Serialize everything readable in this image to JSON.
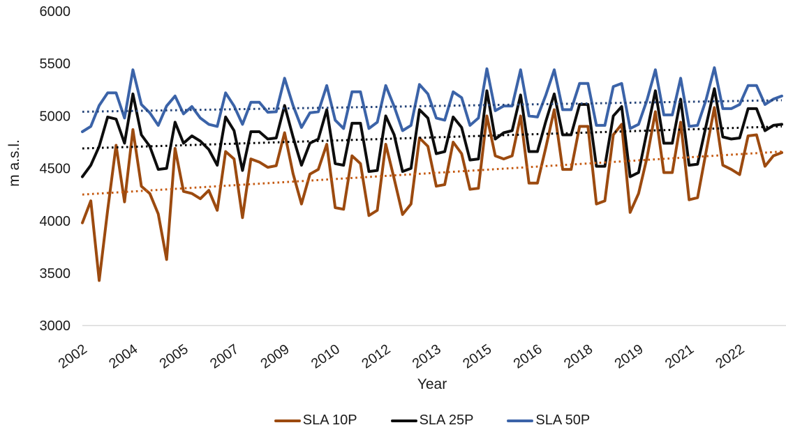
{
  "chart_data": {
    "type": "line",
    "title": "",
    "xlabel": "Year",
    "ylabel": "m a.s.l.",
    "ylim": [
      3000,
      6000
    ],
    "ytick_interval": 500,
    "yticks": [
      6000,
      5500,
      5000,
      4500,
      4000,
      3500,
      3000
    ],
    "xtick_labels": [
      "2002",
      "2004",
      "2005",
      "2007",
      "2009",
      "2010",
      "2012",
      "2013",
      "2015",
      "2016",
      "2018",
      "2019",
      "2021",
      "2022"
    ],
    "points_per_xtick": 6,
    "grid": "off",
    "legend_position": "bottom",
    "axis_line_color": "#d9d9d9",
    "series": [
      {
        "name": "SLA 10P",
        "color": "#9c4a0f",
        "values": [
          3980,
          4190,
          3430,
          4100,
          4720,
          4180,
          4870,
          4330,
          4260,
          4065,
          3630,
          4690,
          4280,
          4260,
          4210,
          4290,
          4100,
          4660,
          4590,
          4030,
          4590,
          4560,
          4510,
          4525,
          4840,
          4450,
          4160,
          4445,
          4490,
          4730,
          4125,
          4110,
          4620,
          4545,
          4050,
          4100,
          4730,
          4400,
          4060,
          4160,
          4790,
          4710,
          4330,
          4345,
          4750,
          4640,
          4300,
          4310,
          5000,
          4620,
          4590,
          4620,
          5000,
          4360,
          4360,
          4700,
          5060,
          4490,
          4490,
          4900,
          4900,
          4160,
          4190,
          4820,
          4920,
          4080,
          4260,
          4600,
          5040,
          4460,
          4460,
          4940,
          4200,
          4220,
          4650,
          5080,
          4530,
          4490,
          4440,
          4810,
          4820,
          4520,
          4620,
          4650
        ]
      },
      {
        "name": "SLA 25P",
        "color": "#0d0d0d",
        "values": [
          4420,
          4530,
          4710,
          4990,
          4970,
          4740,
          5210,
          4820,
          4710,
          4490,
          4500,
          4940,
          4740,
          4810,
          4760,
          4680,
          4530,
          4990,
          4860,
          4480,
          4850,
          4850,
          4780,
          4790,
          5100,
          4800,
          4530,
          4740,
          4780,
          5060,
          4545,
          4530,
          4930,
          4930,
          4470,
          4480,
          5000,
          4820,
          4470,
          4500,
          5060,
          4980,
          4640,
          4660,
          4990,
          4890,
          4580,
          4590,
          5240,
          4780,
          4840,
          4860,
          5200,
          4660,
          4660,
          4950,
          5210,
          4820,
          4820,
          5110,
          5110,
          4520,
          4520,
          5000,
          5090,
          4420,
          4460,
          4850,
          5240,
          4740,
          4740,
          5160,
          4530,
          4540,
          4900,
          5260,
          4800,
          4780,
          4790,
          5070,
          5070,
          4860,
          4910,
          4920
        ]
      },
      {
        "name": "SLA 50P",
        "color": "#3b63a8",
        "values": [
          4850,
          4900,
          5100,
          5220,
          5220,
          4980,
          5440,
          5110,
          5030,
          4910,
          5095,
          5190,
          5020,
          5090,
          4980,
          4920,
          4900,
          5220,
          5095,
          4920,
          5130,
          5130,
          5035,
          5040,
          5360,
          5100,
          4890,
          5030,
          5040,
          5290,
          4960,
          4880,
          5230,
          5230,
          4880,
          4940,
          5290,
          5090,
          4860,
          4910,
          5300,
          5210,
          4980,
          4960,
          5230,
          5175,
          4910,
          4980,
          5450,
          5050,
          5095,
          5095,
          5440,
          5000,
          4990,
          5200,
          5440,
          5060,
          5060,
          5310,
          5310,
          4910,
          4910,
          5280,
          5310,
          4880,
          4920,
          5150,
          5440,
          5010,
          5010,
          5360,
          4900,
          4910,
          5150,
          5460,
          5070,
          5070,
          5110,
          5290,
          5290,
          5110,
          5160,
          5190
        ]
      }
    ],
    "trendlines": [
      {
        "series": "SLA 10P",
        "style": "dotted",
        "color": "#c55a11",
        "start_value": 4250,
        "end_value": 4660
      },
      {
        "series": "SLA 25P",
        "style": "dotted",
        "color": "#000000",
        "start_value": 4690,
        "end_value": 4900
      },
      {
        "series": "SLA 50P",
        "style": "dotted",
        "color": "#26457a",
        "start_value": 5040,
        "end_value": 5150
      }
    ]
  },
  "legend": {
    "items": [
      {
        "label": "SLA 10P"
      },
      {
        "label": "SLA 25P"
      },
      {
        "label": "SLA 50P"
      }
    ]
  }
}
